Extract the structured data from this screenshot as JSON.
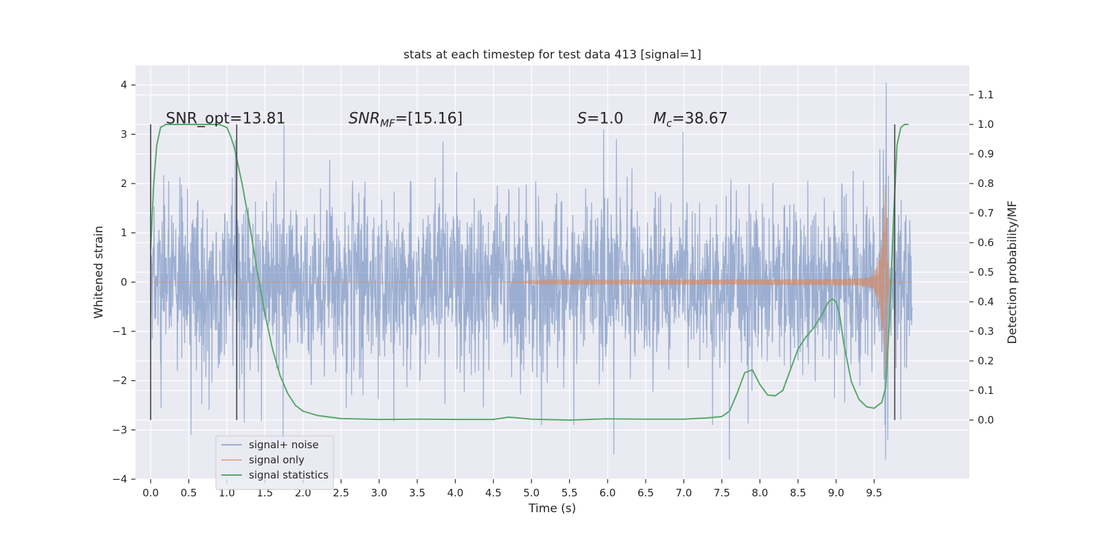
{
  "chart_data": {
    "type": "line",
    "title": "stats at each timestep for test data 413 [signal=1]",
    "xlabel": "Time (s)",
    "ylabel_left": "Whitened strain",
    "ylabel_right": "Detection probability/MF",
    "xlim": [
      -0.2,
      10.75
    ],
    "ylim_left": [
      -4.0,
      4.4
    ],
    "ylim_right": [
      -0.2,
      1.2
    ],
    "x_ticks": [
      0.0,
      0.5,
      1.0,
      1.5,
      2.0,
      2.5,
      3.0,
      3.5,
      4.0,
      4.5,
      5.0,
      5.5,
      6.0,
      6.5,
      7.0,
      7.5,
      8.0,
      8.5,
      9.0,
      9.5
    ],
    "x_tick_labels": [
      "0.0",
      "0.5",
      "1.0",
      "1.5",
      "2.0",
      "2.5",
      "3.0",
      "3.5",
      "4.0",
      "4.5",
      "5.0",
      "5.5",
      "6.0",
      "6.5",
      "7.0",
      "7.5",
      "8.0",
      "8.5",
      "9.0",
      "9.5"
    ],
    "y_left_ticks": [
      -4,
      -3,
      -2,
      -1,
      0,
      1,
      2,
      3,
      4
    ],
    "y_left_tick_labels": [
      "−4",
      "−3",
      "−2",
      "−1",
      "0",
      "1",
      "2",
      "3",
      "4"
    ],
    "y_right_ticks": [
      0.0,
      0.1,
      0.2,
      0.3,
      0.4,
      0.5,
      0.6,
      0.7,
      0.8,
      0.9,
      1.0,
      1.1
    ],
    "y_right_tick_labels": [
      "0.0",
      "0.1",
      "0.2",
      "0.3",
      "0.4",
      "0.5",
      "0.6",
      "0.7",
      "0.8",
      "0.9",
      "1.0",
      "1.1"
    ],
    "grid": true,
    "legend_placement": "lower-left",
    "series": [
      {
        "name": "signal+ noise",
        "axis": "left",
        "color": "#4c72b0",
        "alpha": 0.5,
        "style": "noise",
        "x_range": [
          0.0,
          10.0
        ],
        "typical_amplitude": 1.4,
        "peak_values": [
          {
            "x": 1.75,
            "y": 3.2
          },
          {
            "x": 1.74,
            "y": -3.2
          },
          {
            "x": 0.53,
            "y": -3.1
          },
          {
            "x": 5.95,
            "y": 3.1
          },
          {
            "x": 6.08,
            "y": -3.5
          },
          {
            "x": 6.99,
            "y": 3.05
          },
          {
            "x": 7.6,
            "y": -3.6
          },
          {
            "x": 9.66,
            "y": 4.05
          },
          {
            "x": 9.65,
            "y": -3.6
          },
          {
            "x": 9.68,
            "y": -3.2
          },
          {
            "x": 9.85,
            "y": -2.8
          },
          {
            "x": 1.23,
            "y": -2.85
          }
        ]
      },
      {
        "name": "signal only",
        "axis": "left",
        "color": "#dd8452",
        "alpha": 0.6,
        "style": "chirp",
        "chirp_start": 4.6,
        "merger_time": 9.66,
        "ringdown_end": 9.72,
        "peak_amplitude": 2.6
      },
      {
        "name": "signal statistics",
        "axis": "right",
        "color": "#55a868",
        "style": "line",
        "x": [
          0.0,
          0.04,
          0.08,
          0.13,
          0.2,
          0.3,
          0.45,
          0.7,
          0.9,
          1.0,
          1.05,
          1.1,
          1.15,
          1.2,
          1.3,
          1.4,
          1.5,
          1.6,
          1.7,
          1.8,
          1.9,
          2.0,
          2.2,
          2.5,
          3.0,
          3.5,
          4.0,
          4.5,
          4.7,
          5.0,
          5.5,
          6.0,
          6.5,
          7.0,
          7.3,
          7.5,
          7.6,
          7.7,
          7.8,
          7.9,
          8.0,
          8.1,
          8.2,
          8.3,
          8.4,
          8.5,
          8.6,
          8.7,
          8.8,
          8.9,
          8.95,
          9.0,
          9.05,
          9.1,
          9.2,
          9.3,
          9.4,
          9.5,
          9.6,
          9.65,
          9.7,
          9.75,
          9.8,
          9.85,
          9.9,
          9.95
        ],
        "y": [
          0.58,
          0.8,
          0.93,
          0.99,
          1.0,
          1.0,
          1.0,
          1.0,
          1.0,
          0.99,
          0.96,
          0.92,
          0.86,
          0.8,
          0.66,
          0.5,
          0.36,
          0.24,
          0.15,
          0.09,
          0.05,
          0.03,
          0.015,
          0.005,
          0.002,
          0.003,
          0.002,
          0.002,
          0.01,
          0.003,
          0.0,
          0.004,
          0.003,
          0.003,
          0.007,
          0.012,
          0.03,
          0.09,
          0.16,
          0.17,
          0.12,
          0.085,
          0.082,
          0.1,
          0.17,
          0.24,
          0.28,
          0.31,
          0.35,
          0.4,
          0.41,
          0.4,
          0.35,
          0.26,
          0.13,
          0.07,
          0.045,
          0.04,
          0.06,
          0.11,
          0.33,
          0.66,
          0.93,
          0.99,
          1.0,
          1.0
        ]
      }
    ],
    "vertical_markers": [
      {
        "x": 0.0,
        "y_range": [
          -2.8,
          3.2
        ],
        "color": "#404040"
      },
      {
        "x": 1.13,
        "y_range": [
          -2.8,
          3.2
        ],
        "color": "#404040"
      },
      {
        "x": 9.77,
        "y_range": [
          -2.8,
          3.2
        ],
        "color": "#404040"
      }
    ],
    "annotations": [
      {
        "name": "snr-opt",
        "text": "SNR_opt=13.81",
        "x": 0.2,
        "y": 3.22
      },
      {
        "name": "snr-mf",
        "text": "SNR_MF=[15.16]",
        "base": "SNR",
        "sub": "MF",
        "suffix": "=[15.16]",
        "italic": true,
        "x": 2.6,
        "y": 3.22
      },
      {
        "name": "stat-s",
        "text": "S=1.0",
        "base": "S",
        "suffix": "=1.0",
        "italic": true,
        "x": 5.6,
        "y": 3.22
      },
      {
        "name": "chirp-mass",
        "text": "M_c=38.67",
        "base": "M",
        "sub": "c",
        "suffix": "=38.67",
        "italic": true,
        "x": 6.6,
        "y": 3.22
      }
    ]
  }
}
